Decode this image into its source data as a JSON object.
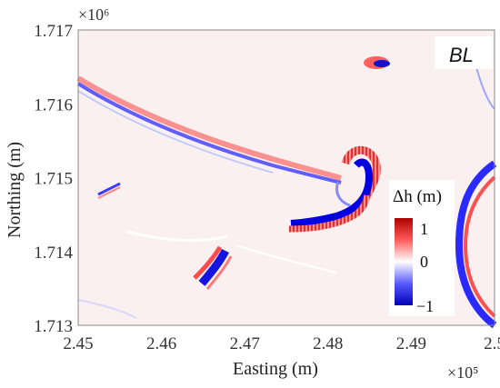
{
  "chart_data": {
    "type": "heatmap",
    "panel_tag": "BL",
    "xlabel": "Easting (m)",
    "ylabel": "Northing (m)",
    "x_multiplier": "×10⁵",
    "y_multiplier": "×10⁶",
    "xlim": [
      2.45,
      2.5
    ],
    "ylim": [
      1.713,
      1.717
    ],
    "x_ticks": [
      "2.45",
      "2.46",
      "2.47",
      "2.48",
      "2.49",
      "2.5"
    ],
    "y_ticks": [
      "1.713",
      "1.714",
      "1.715",
      "1.716",
      "1.717"
    ],
    "x_tick_values": [
      2.45,
      2.46,
      2.47,
      2.48,
      2.49,
      2.5
    ],
    "y_tick_values": [
      1.713,
      1.714,
      1.715,
      1.716,
      1.717
    ],
    "colorbar": {
      "title": "Δh (m)",
      "range": [
        -1,
        1
      ],
      "ticks": [
        "1",
        "0",
        "−1"
      ],
      "colors": [
        "#b00000",
        "#ffffff",
        "#0000b8"
      ]
    }
  }
}
